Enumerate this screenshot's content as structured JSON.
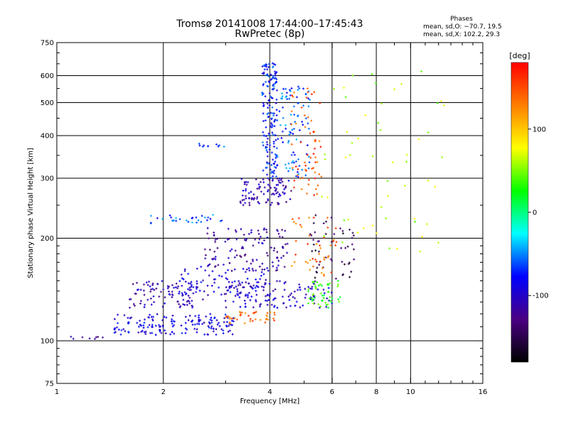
{
  "title": {
    "line1": "Tromsø 20141008 17:44:00–17:45:43",
    "line2": "RwPretec (8p)"
  },
  "phases": {
    "title": "Phases",
    "o_line": "mean, sd,O: −70.7, 19.5",
    "x_line": "mean, sd,X: 102.2, 29.3"
  },
  "chart_data": {
    "type": "scatter",
    "xlabel": "Frequency [MHz]",
    "ylabel": "Stationary phase Virtual Height [km]",
    "xscale": "log",
    "yscale": "log",
    "xlim": [
      1,
      16
    ],
    "ylim": [
      75,
      750
    ],
    "xticks": [
      1,
      2,
      4,
      6,
      8,
      10,
      16
    ],
    "xtick_labels": [
      "1",
      "2",
      "4",
      "6",
      "8",
      "10",
      "16"
    ],
    "yticks": [
      75,
      100,
      200,
      300,
      400,
      500,
      600,
      750
    ],
    "ytick_labels": [
      "75",
      "100",
      "200",
      "300",
      "400",
      "500",
      "600",
      "750"
    ],
    "x_gridlines": [
      2,
      4,
      6,
      8,
      10
    ],
    "y_gridlines": [
      100,
      200,
      300,
      400,
      500,
      600
    ],
    "grid": true,
    "colorbar": {
      "label": "[deg]",
      "range": [
        -180,
        180
      ],
      "ticks": [
        100,
        0,
        -100
      ],
      "tick_labels": [
        "100",
        "0",
        "-100"
      ],
      "colors": [
        "#000000",
        "#4b0082",
        "#0000ff",
        "#00ffff",
        "#00ff00",
        "#ffff00",
        "#ff7f00",
        "#ff0000"
      ]
    },
    "point_marker": "+",
    "traces": [
      {
        "x_range": [
          1.05,
          1.35
        ],
        "y_range": [
          101,
          103
        ],
        "phase": -120,
        "count": 8
      },
      {
        "x_range": [
          1.45,
          3.2
        ],
        "y_range": [
          104,
          120
        ],
        "phase": -90,
        "count": 160
      },
      {
        "x_range": [
          1.6,
          2.5
        ],
        "y_range": [
          125,
          150
        ],
        "phase": -110,
        "count": 90
      },
      {
        "x_range": [
          2.2,
          4.0
        ],
        "y_range": [
          130,
          165
        ],
        "phase": -95,
        "count": 90
      },
      {
        "x_range": [
          3.0,
          4.2
        ],
        "y_range": [
          112,
          122
        ],
        "phase": 140,
        "count": 40
      },
      {
        "x_range": [
          3.0,
          6.0
        ],
        "y_range": [
          125,
          150
        ],
        "phase": -100,
        "count": 120
      },
      {
        "x_range": [
          2.6,
          4.5
        ],
        "y_range": [
          160,
          215
        ],
        "phase": -115,
        "count": 120
      },
      {
        "x_range": [
          3.3,
          4.6
        ],
        "y_range": [
          250,
          300
        ],
        "phase": -110,
        "count": 100
      },
      {
        "x_range": [
          3.8,
          4.2
        ],
        "y_range": [
          300,
          660
        ],
        "phase": -75,
        "count": 160
      },
      {
        "x_range": [
          4.2,
          5.2
        ],
        "y_range": [
          300,
          560
        ],
        "phase": -60,
        "count": 90
      },
      {
        "x_range": [
          4.6,
          5.6
        ],
        "y_range": [
          260,
          560
        ],
        "phase": 150,
        "count": 60
      },
      {
        "x_range": [
          5.1,
          6.4
        ],
        "y_range": [
          125,
          150
        ],
        "phase": 30,
        "count": 50
      },
      {
        "x_range": [
          5.2,
          7.0
        ],
        "y_range": [
          150,
          240
        ],
        "phase": -150,
        "count": 50
      },
      {
        "x_range": [
          4.5,
          6.2
        ],
        "y_range": [
          155,
          230
        ],
        "phase": 140,
        "count": 45
      },
      {
        "x_range": [
          5.5,
          12.5
        ],
        "y_range": [
          180,
          620
        ],
        "phase": 60,
        "count": 55
      },
      {
        "x_range": [
          1.8,
          3.0
        ],
        "y_range": [
          220,
          235
        ],
        "phase": -60,
        "count": 30
      },
      {
        "x_range": [
          2.5,
          3.0
        ],
        "y_range": [
          370,
          380
        ],
        "phase": -60,
        "count": 10
      }
    ]
  }
}
